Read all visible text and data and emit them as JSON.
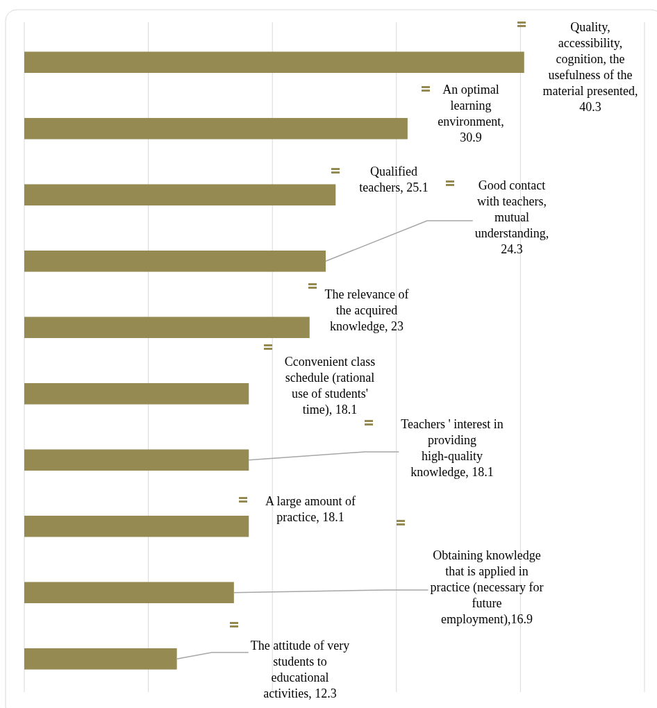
{
  "chart_data": {
    "type": "bar",
    "orientation": "horizontal",
    "categories": [
      null,
      null,
      null,
      null,
      null,
      null,
      null,
      null,
      null,
      null
    ],
    "values": [
      40.3,
      30.9,
      25.1,
      24.3,
      23,
      18.1,
      18.1,
      18.1,
      16.9,
      12.3
    ],
    "value_labels": [
      "Quality, accessibility, cognition, the usefulness of the material presented, 40.3",
      "An optimal learning environment, 30.9",
      "Qualified teachers, 25.1",
      "Good contact with teachers, mutual understanding, 24.3",
      "The relevance of the acquired knowledge, 23",
      "Cconvenient class schedule (rational use of students' time), 18.1",
      "Teachers ' interest in providing high-quality knowledge, 18.1",
      "A large amount of practice, 18.1",
      "Obtaining knowledge that is applied in practice (necessary for future employment),16.9",
      "The attitude of very students to educational activities, 12.3"
    ],
    "color": "#958b52",
    "xlim": [
      0,
      50
    ],
    "xticks": [
      {
        "value": 0,
        "label": null
      },
      {
        "value": 10,
        "label": null
      },
      {
        "value": 20,
        "label": null
      },
      {
        "value": 30,
        "label": null
      },
      {
        "value": 40,
        "label": null
      },
      {
        "value": 50,
        "label": null
      }
    ],
    "grid": "x"
  }
}
